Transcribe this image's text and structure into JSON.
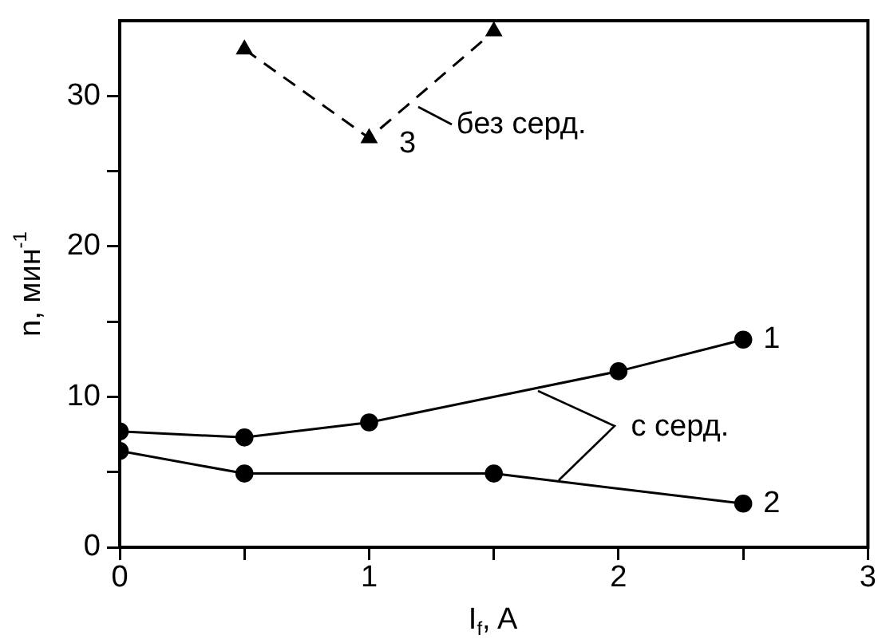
{
  "chart_data": {
    "type": "line",
    "xlabel": "I$_{f}$, A",
    "ylabel": "n, мин$^{-1}$",
    "xlim": [
      0,
      3
    ],
    "xticks": [
      0,
      {
        "value": 0.5,
        "label": null
      },
      1,
      {
        "value": 1.5,
        "label": null
      },
      2,
      {
        "value": 2.5,
        "label": null
      },
      3
    ],
    "ylim": [
      0,
      35
    ],
    "yticks": [
      0,
      {
        "value": 5,
        "label": null
      },
      10,
      {
        "value": 15,
        "label": null
      },
      20,
      {
        "value": 25,
        "label": null
      },
      30
    ],
    "grid": false,
    "legend": false,
    "series": [
      {
        "x": [
          0,
          0.5,
          1,
          2,
          2.5
        ],
        "values": [
          7.7,
          7.3,
          8.3,
          11.7,
          13.8
        ],
        "color": "#000000",
        "marker": "circle",
        "line_style": "solid"
      },
      {
        "x": [
          0,
          0.5,
          1.5,
          2.5
        ],
        "values": [
          6.4,
          4.9,
          4.9,
          2.9
        ],
        "color": "#000000",
        "marker": "circle",
        "line_style": "solid"
      },
      {
        "x": [
          0.5,
          1,
          1.5
        ],
        "values": [
          33.1,
          27.2,
          34.3
        ],
        "color": "#000000",
        "marker": "triangle",
        "line_style": "dashed"
      }
    ],
    "annotations": [
      "1",
      "2",
      "3",
      "с серд.",
      "без серд."
    ]
  }
}
